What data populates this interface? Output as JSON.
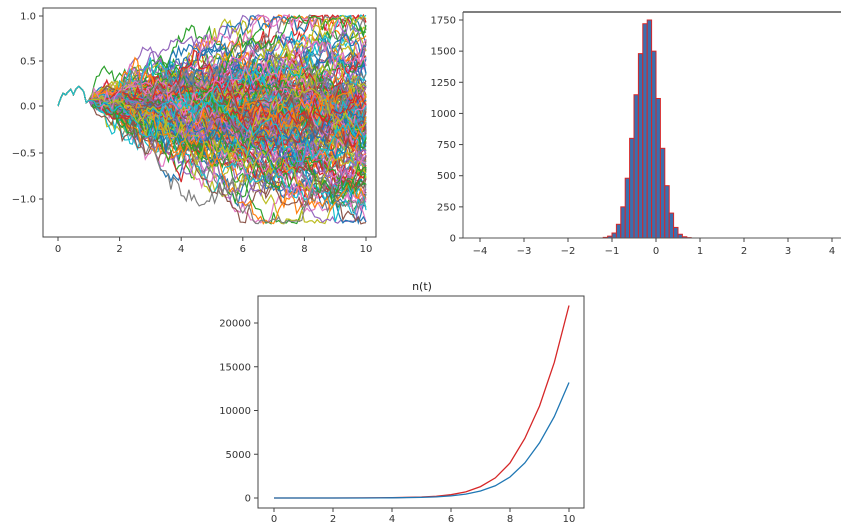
{
  "chart_data": [
    {
      "type": "line",
      "title": "",
      "xlabel": "",
      "ylabel": "",
      "xlim": [
        0,
        10
      ],
      "ylim": [
        -1.4,
        1.05
      ],
      "x_ticks": [
        "0",
        "2",
        "4",
        "6",
        "8",
        "10"
      ],
      "y_ticks": [
        "1.0",
        "0.5",
        "0.0",
        "−0.5",
        "−1.0"
      ],
      "description_series_count": 200,
      "colors": [
        "#1f77b4",
        "#ff7f0e",
        "#2ca02c",
        "#d62728",
        "#9467bd",
        "#8c564b",
        "#e377c2",
        "#7f7f7f",
        "#bcbd22",
        "#17becf"
      ]
    },
    {
      "type": "bar",
      "title": "",
      "xlabel": "",
      "ylabel": "",
      "xlim": [
        -4.2,
        4.2
      ],
      "ylim": [
        0,
        1840
      ],
      "x_ticks": [
        "−4",
        "−3",
        "−2",
        "−1",
        "0",
        "1",
        "2",
        "3",
        "4"
      ],
      "y_ticks": [
        "1750",
        "1500",
        "1250",
        "1000",
        "750",
        "500",
        "250",
        "0"
      ],
      "bin_width": 0.1,
      "bin_starts": [
        -1.2,
        -1.1,
        -1.0,
        -0.9,
        -0.8,
        -0.7,
        -0.6,
        -0.5,
        -0.4,
        -0.3,
        -0.2,
        -0.1,
        0.0,
        0.1,
        0.2,
        0.3,
        0.4,
        0.5,
        0.6,
        0.7
      ],
      "values": [
        5,
        15,
        40,
        110,
        250,
        480,
        800,
        1150,
        1480,
        1720,
        1750,
        1500,
        1120,
        720,
        420,
        200,
        85,
        30,
        10,
        3
      ],
      "bar_color": "#3b6fae",
      "edge_color": "#d62728"
    },
    {
      "type": "line",
      "title": "n(t)",
      "xlabel": "",
      "ylabel": "",
      "xlim": [
        0,
        10
      ],
      "ylim": [
        0,
        22000
      ],
      "x_ticks": [
        "0",
        "2",
        "4",
        "6",
        "8",
        "10"
      ],
      "y_ticks": [
        "20000",
        "15000",
        "10000",
        "5000",
        "0"
      ],
      "x": [
        0,
        1,
        2,
        3,
        4,
        5,
        5.5,
        6,
        6.5,
        7,
        7.5,
        8,
        8.5,
        9,
        9.5,
        10
      ],
      "series": [
        {
          "color": "#d62728",
          "values": [
            0,
            0,
            2,
            8,
            30,
            110,
            200,
            380,
            700,
            1300,
            2300,
            4000,
            6800,
            10500,
            15500,
            22000
          ]
        },
        {
          "color": "#1f77b4",
          "values": [
            0,
            0,
            1,
            5,
            18,
            70,
            130,
            240,
            440,
            800,
            1400,
            2400,
            4000,
            6300,
            9300,
            13200
          ]
        }
      ]
    }
  ]
}
